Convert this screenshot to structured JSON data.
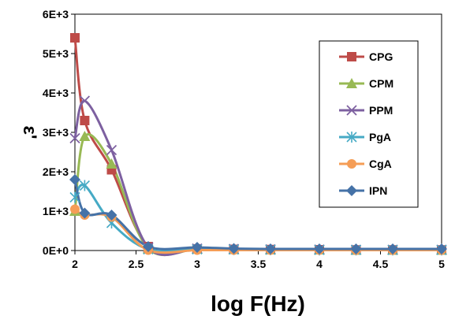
{
  "chart_data": {
    "type": "line",
    "xlabel": "log F(Hz)",
    "ylabel": "ε'",
    "xlim": [
      2,
      5
    ],
    "ylim": [
      0,
      6000
    ],
    "x_ticks": [
      "2",
      "2.5",
      "3",
      "3.5",
      "4",
      "4.5",
      "5"
    ],
    "y_ticks": [
      "0E+0",
      "1E+3",
      "2E+3",
      "3E+3",
      "4E+3",
      "5E+3",
      "6E+3"
    ],
    "grid": false,
    "legend_position": "right",
    "series": [
      {
        "name": "CPG",
        "color": "#BE4B48",
        "marker": "square",
        "x": [
          2,
          2.08,
          2.3,
          2.6,
          3,
          3.3,
          3.6,
          4,
          4.3,
          4.6,
          5
        ],
        "y": [
          5400,
          3300,
          2050,
          100,
          40,
          30,
          25,
          20,
          15,
          15,
          15
        ]
      },
      {
        "name": "CPM",
        "color": "#98B954",
        "marker": "triangle",
        "x": [
          2,
          2.08,
          2.3,
          2.6,
          3,
          3.3,
          3.6,
          4,
          4.3,
          4.6,
          5
        ],
        "y": [
          1000,
          2900,
          2200,
          50,
          40,
          30,
          25,
          20,
          15,
          15,
          15
        ]
      },
      {
        "name": "PPM",
        "color": "#7D60A0",
        "marker": "x",
        "x": [
          2,
          2.08,
          2.3,
          2.6,
          3,
          3.3,
          3.6,
          4,
          4.3,
          4.6,
          5
        ],
        "y": [
          2850,
          3800,
          2550,
          80,
          50,
          40,
          30,
          25,
          20,
          20,
          20
        ]
      },
      {
        "name": "PgA",
        "color": "#46AAC5",
        "marker": "asterisk",
        "x": [
          2,
          2.08,
          2.3,
          2.6,
          3,
          3.3,
          3.6,
          4,
          4.3,
          4.6,
          5
        ],
        "y": [
          1350,
          1650,
          700,
          30,
          30,
          25,
          20,
          15,
          15,
          15,
          15
        ]
      },
      {
        "name": "CgA",
        "color": "#F59D56",
        "marker": "circle",
        "x": [
          2,
          2.08,
          2.3,
          2.6,
          3,
          3.3,
          3.6,
          4,
          4.3,
          4.6,
          5
        ],
        "y": [
          1050,
          900,
          850,
          10,
          10,
          10,
          10,
          10,
          10,
          10,
          10
        ]
      },
      {
        "name": "IPN",
        "color": "#4572A7",
        "marker": "diamond",
        "x": [
          2,
          2.08,
          2.3,
          2.6,
          3,
          3.3,
          3.6,
          4,
          4.3,
          4.6,
          5
        ],
        "y": [
          1800,
          950,
          900,
          100,
          80,
          50,
          40,
          40,
          40,
          40,
          40
        ]
      }
    ]
  }
}
